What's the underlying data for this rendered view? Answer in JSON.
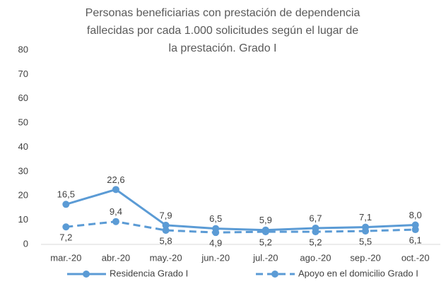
{
  "chart_data": {
    "type": "line",
    "title": "Personas beneficiarias con prestación de dependencia fallecidas por cada 1.000 solicitudes según el lugar de la prestación. Grado I",
    "categories": [
      "mar.-20",
      "abr.-20",
      "may.-20",
      "jun.-20",
      "jul.-20",
      "ago.-20",
      "sep.-20",
      "oct.-20"
    ],
    "series": [
      {
        "name": "Residencia Grado I",
        "color": "#5b9bd5",
        "line_style": "solid",
        "values": [
          16.5,
          22.6,
          7.9,
          6.5,
          5.9,
          6.7,
          7.1,
          8.0
        ],
        "value_labels": [
          "16,5",
          "22,6",
          "7,9",
          "6,5",
          "5,9",
          "6,7",
          "7,1",
          "8,0"
        ]
      },
      {
        "name": "Apoyo en el domicilio Grado I",
        "color": "#5b9bd5",
        "line_style": "dashed",
        "values": [
          7.2,
          9.4,
          5.8,
          4.9,
          5.2,
          5.2,
          5.5,
          6.1
        ],
        "value_labels": [
          "7,2",
          "9,4",
          "5,8",
          "4,9",
          "5,2",
          "5,2",
          "5,5",
          "6,1"
        ]
      }
    ],
    "ylim": [
      0,
      80
    ],
    "yticks": [
      0,
      10,
      20,
      30,
      40,
      50,
      60,
      70,
      80
    ],
    "grid": false,
    "legend": "bottom"
  }
}
